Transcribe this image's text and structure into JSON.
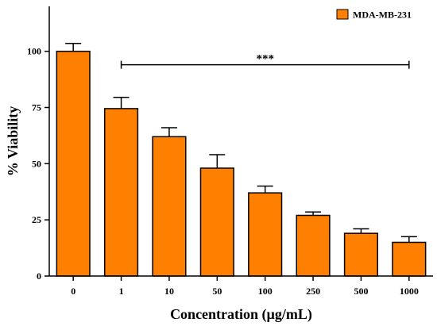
{
  "chart_data": {
    "type": "bar",
    "title": "",
    "xlabel": "Concentration (µg/mL)",
    "ylabel": "% Viability",
    "categories": [
      "0",
      "1",
      "10",
      "50",
      "100",
      "250",
      "500",
      "1000"
    ],
    "series": [
      {
        "name": "MDA-MB-231",
        "values": [
          100,
          74.5,
          62,
          48,
          37,
          27,
          19,
          15
        ],
        "errors": [
          3.5,
          5,
          4,
          6,
          3,
          1.5,
          2,
          2.5
        ]
      }
    ],
    "ylim": [
      0,
      120
    ],
    "yticks": [
      "0",
      "25",
      "50",
      "75",
      "100"
    ],
    "grid": false,
    "legend_position": "top-right",
    "annotation": {
      "text": "***",
      "from_category": "1",
      "to_category": "1000",
      "y": 94
    },
    "colors": {
      "bar_fill": "#FF8000",
      "bar_stroke": "#000000"
    }
  }
}
